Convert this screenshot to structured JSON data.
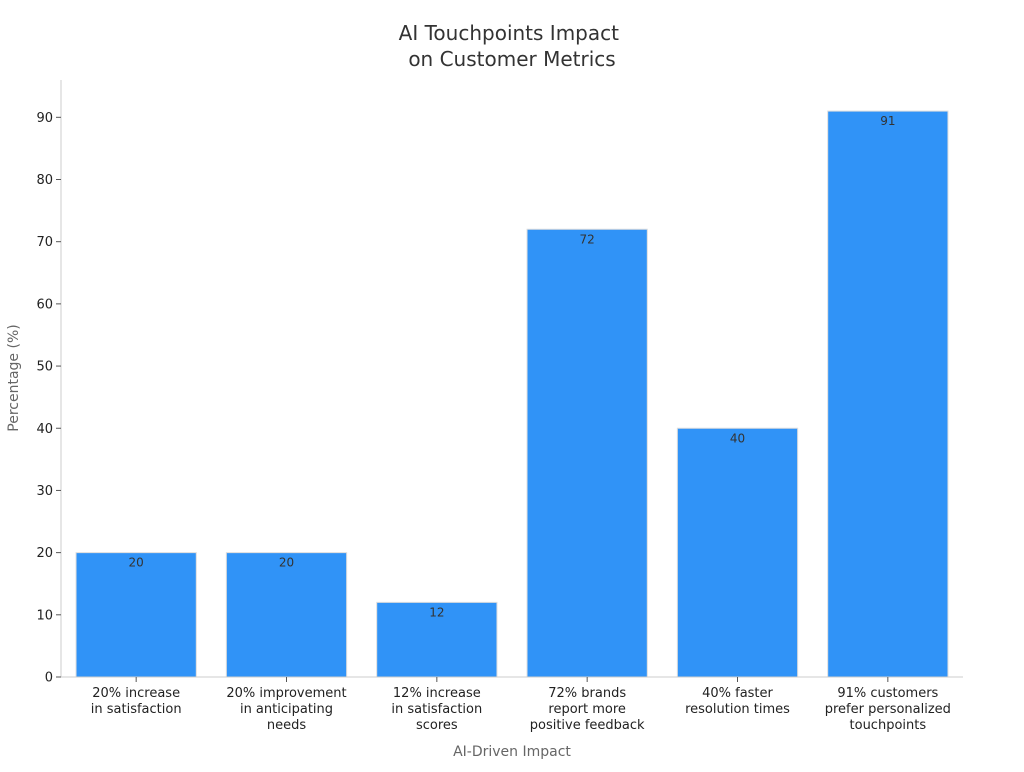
{
  "chart_data": {
    "type": "bar",
    "title": [
      "AI Touchpoints Impact",
      "on Customer Metrics"
    ],
    "xlabel": "AI-Driven Impact",
    "ylabel": "Percentage (%)",
    "categories": [
      [
        "20% increase",
        "in satisfaction"
      ],
      [
        "20% improvement",
        "in anticipating",
        "needs"
      ],
      [
        "12% increase",
        "in satisfaction",
        "scores"
      ],
      [
        "72% brands",
        "report more",
        "positive feedback"
      ],
      [
        "40% faster",
        "resolution times"
      ],
      [
        "91% customers",
        "prefer personalized",
        "touchpoints"
      ]
    ],
    "values": [
      20,
      20,
      12,
      72,
      40,
      91
    ],
    "data_labels": [
      "20",
      "20",
      "12",
      "72",
      "40",
      "91"
    ],
    "ylim": [
      0,
      96
    ],
    "yticks": [
      0,
      10,
      20,
      30,
      40,
      50,
      60,
      70,
      80,
      90
    ],
    "grid": false,
    "legend": "none",
    "colors": {
      "bar": "#3093f7",
      "bar_edge": "#dddddd",
      "axis": "#cccccc",
      "tick": "#555555"
    }
  }
}
